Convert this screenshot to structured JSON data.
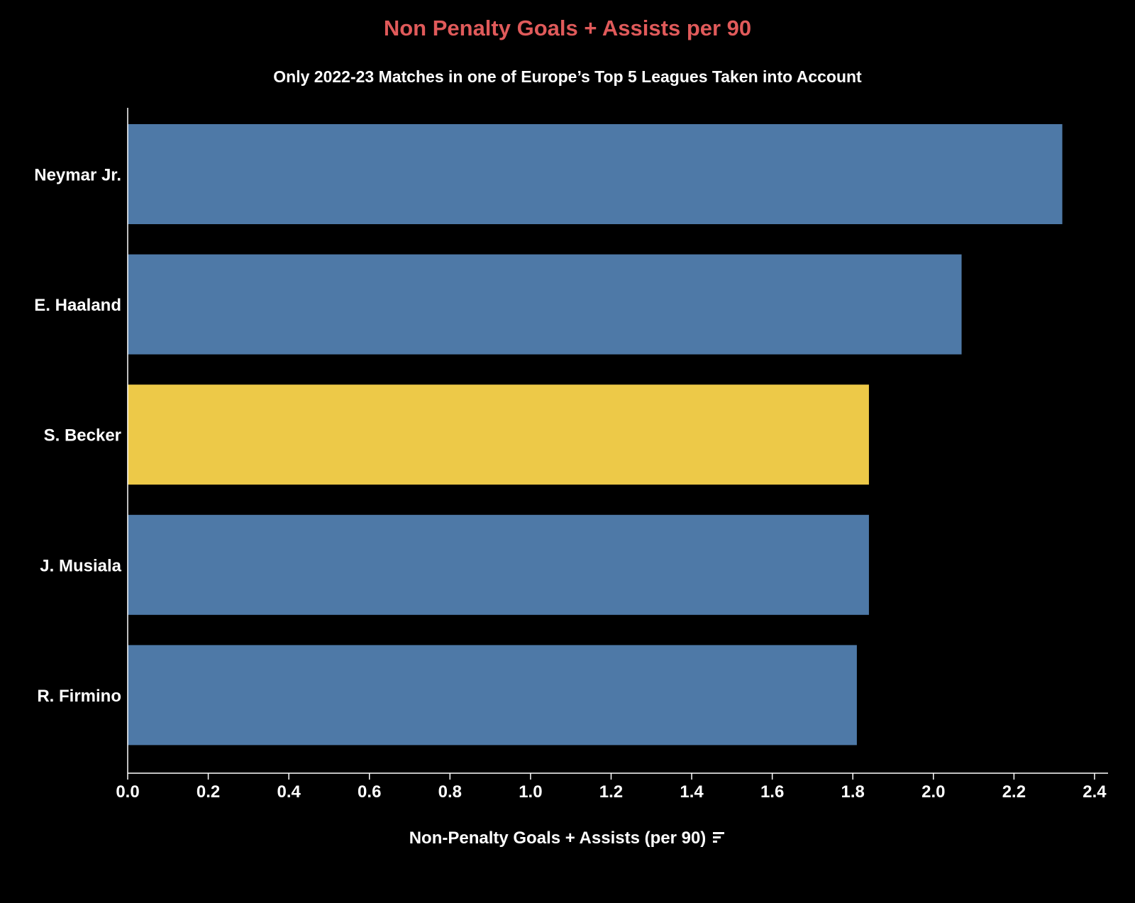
{
  "chart_data": {
    "type": "bar",
    "orientation": "horizontal",
    "title": "Non Penalty Goals + Assists per 90",
    "subtitle": "Only 2022-23 Matches in one of Europe’s Top 5 Leagues Taken into Account",
    "xlabel": "Non-Penalty Goals + Assists (per 90)",
    "ylabel": "",
    "categories": [
      "Neymar Jr.",
      "E. Haaland",
      "S. Becker",
      "J. Musiala",
      "R. Firmino"
    ],
    "values": [
      2.32,
      2.07,
      1.84,
      1.84,
      1.81
    ],
    "highlight": "S. Becker",
    "xlim": [
      0,
      2.43
    ],
    "xticks": [
      "0.0",
      "0.2",
      "0.4",
      "0.6",
      "0.8",
      "1.0",
      "1.2",
      "1.4",
      "1.6",
      "1.8",
      "2.0",
      "2.2",
      "2.4"
    ],
    "grid": false,
    "legend": "none"
  },
  "colors": {
    "background": "#000000",
    "bar": "#4e79a7",
    "highlight_bar": "#edc948",
    "title": "#e05a5a",
    "text": "#ffffff",
    "axis": "#ffffff"
  },
  "icons": {
    "sort": "sort-descending-icon"
  }
}
